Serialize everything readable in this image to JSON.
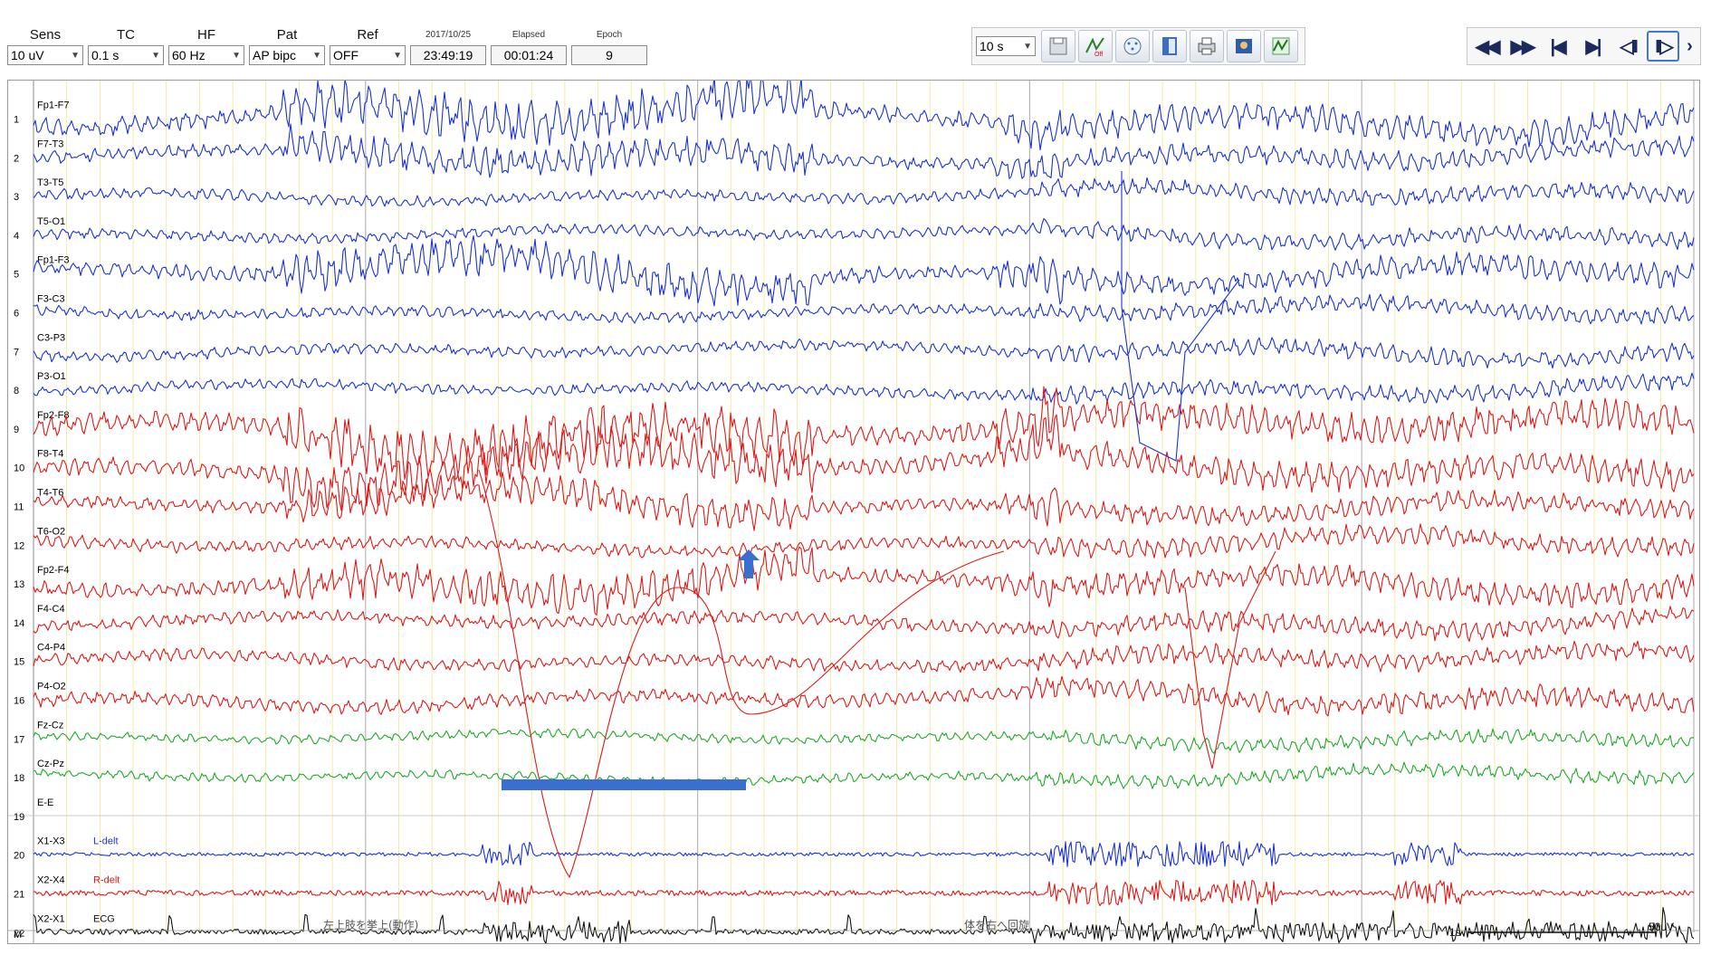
{
  "toolbar": {
    "sens": {
      "label": "Sens",
      "value": "10 uV"
    },
    "tc": {
      "label": "TC",
      "value": "0.1 s"
    },
    "hf": {
      "label": "HF",
      "value": "60 Hz"
    },
    "pat": {
      "label": "Pat",
      "value": "AP bipc"
    },
    "ref": {
      "label": "Ref",
      "value": "OFF"
    },
    "date": {
      "label": "2017/10/25",
      "value": "23:49:19"
    },
    "elapsed": {
      "label": "Elapsed",
      "value": "00:01:24"
    },
    "epoch": {
      "label": "Epoch",
      "value": "9"
    },
    "timebase": "10 s",
    "tool_icons": [
      "save-icon",
      "mark-off-icon",
      "montage-icon",
      "patient-info-icon",
      "print-icon",
      "photo-icon",
      "waveform-icon"
    ],
    "nav_icons": [
      "fast-rewind-icon",
      "fast-forward-icon",
      "skip-start-icon",
      "skip-end-icon",
      "play-reverse-icon",
      "play-icon",
      "more-icon"
    ],
    "nav_labels": [
      "◀◀",
      "▶▶",
      "|◀",
      "▶|",
      "◁II",
      "II▷",
      "›"
    ]
  },
  "channels": [
    {
      "num": "1",
      "label": "Fp1-F7",
      "color": "#1a33d6",
      "kind": "eeg-bursty",
      "noise": 14,
      "baseline": 1,
      "seed": 1
    },
    {
      "num": "2",
      "label": "F7-T3",
      "color": "#1a33d6",
      "kind": "eeg-bursty",
      "noise": 10,
      "baseline": 0.5,
      "seed": 2
    },
    {
      "num": "3",
      "label": "T3-T5",
      "color": "#1a33d6",
      "kind": "eeg",
      "noise": 6,
      "seed": 3
    },
    {
      "num": "4",
      "label": "T5-O1",
      "color": "#1a33d6",
      "kind": "eeg",
      "noise": 6,
      "seed": 4
    },
    {
      "num": "5",
      "label": "Fp1-F3",
      "color": "#1a33d6",
      "kind": "eeg-bursty",
      "noise": 12,
      "baseline": 1,
      "seed": 5
    },
    {
      "num": "6",
      "label": "F3-C3",
      "color": "#1a33d6",
      "kind": "eeg",
      "noise": 6,
      "seed": 6
    },
    {
      "num": "7",
      "label": "C3-P3",
      "color": "#1a33d6",
      "kind": "eeg",
      "noise": 6,
      "seed": 7
    },
    {
      "num": "8",
      "label": "P3-O1",
      "color": "#1a33d6",
      "kind": "eeg",
      "noise": 6,
      "seed": 8
    },
    {
      "num": "9",
      "label": "Fp2-F8",
      "color": "#e01818",
      "kind": "eeg-bursty",
      "noise": 16,
      "baseline": 1,
      "seed": 9
    },
    {
      "num": "10",
      "label": "F8-T4",
      "color": "#e01818",
      "kind": "eeg-bursty",
      "noise": 14,
      "baseline": 0.5,
      "seed": 10
    },
    {
      "num": "11",
      "label": "T4-T6",
      "color": "#e01818",
      "kind": "eeg-bursty",
      "noise": 10,
      "seed": 11
    },
    {
      "num": "12",
      "label": "T6-O2",
      "color": "#e01818",
      "kind": "eeg",
      "noise": 7,
      "seed": 12
    },
    {
      "num": "13",
      "label": "Fp2-F4",
      "color": "#e01818",
      "kind": "eeg-bursty",
      "noise": 12,
      "baseline": 1,
      "seed": 13
    },
    {
      "num": "14",
      "label": "F4-C4",
      "color": "#e01818",
      "kind": "eeg",
      "noise": 7,
      "seed": 14
    },
    {
      "num": "15",
      "label": "C4-P4",
      "color": "#e01818",
      "kind": "eeg",
      "noise": 7,
      "seed": 15
    },
    {
      "num": "16",
      "label": "P4-O2",
      "color": "#e01818",
      "kind": "eeg",
      "noise": 8,
      "seed": 16
    },
    {
      "num": "17",
      "label": "Fz-Cz",
      "color": "#1faa2a",
      "kind": "eeg",
      "noise": 5,
      "seed": 17
    },
    {
      "num": "18",
      "label": "Cz-Pz",
      "color": "#1faa2a",
      "kind": "eeg",
      "noise": 5,
      "seed": 18
    },
    {
      "num": "19",
      "label": "E-E",
      "color": "#1faa2a",
      "kind": "flat",
      "noise": 0,
      "seed": 19
    },
    {
      "num": "20",
      "label": "X1-X3",
      "label2": "L-delt",
      "color": "#1a33d6",
      "kind": "emg",
      "noise": 2,
      "seed": 20
    },
    {
      "num": "21",
      "label": "X2-X4",
      "label2": "R-delt",
      "color": "#e01818",
      "kind": "emg",
      "noise": 3,
      "seed": 21
    },
    {
      "num": "22",
      "label": "X2-X1",
      "label2": "ECG",
      "color": "#111111",
      "kind": "ecg",
      "noise": 3,
      "seed": 22
    }
  ],
  "marker_channel": {
    "num": "M"
  },
  "annotations": [
    {
      "text": "左上肢を挙上(動作)"
    },
    {
      "text": "体を右へ回旋"
    }
  ],
  "scale_label": "50uV",
  "time_label": "1s",
  "arrow": {
    "direction": "up",
    "color": "#3a6fd0"
  },
  "highlight_bar": {
    "color": "#3a6fd0"
  }
}
